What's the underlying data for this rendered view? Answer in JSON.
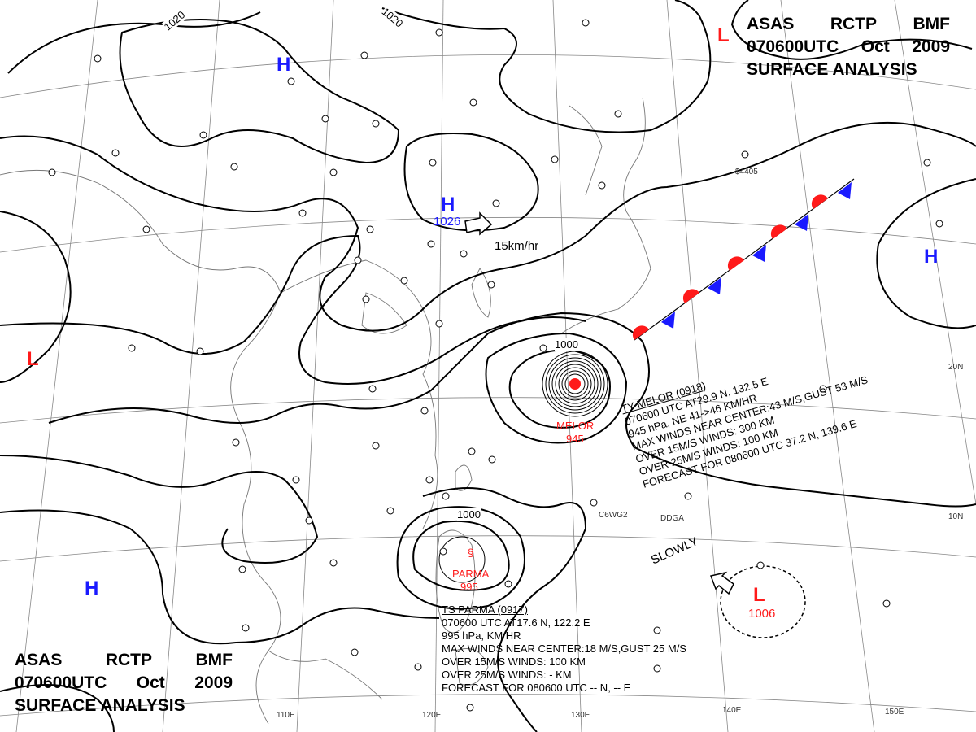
{
  "header": {
    "line1": [
      "ASAS",
      "RCTP",
      "BMF"
    ],
    "line2": [
      "070600UTC",
      "Oct",
      "2009"
    ],
    "line3": "SURFACE ANALYSIS"
  },
  "pressure_centers": [
    {
      "type": "H",
      "value": ""
    },
    {
      "type": "H",
      "value": "1026"
    },
    {
      "type": "H",
      "value": ""
    },
    {
      "type": "H",
      "value": ""
    },
    {
      "type": "L",
      "value": ""
    },
    {
      "type": "L",
      "value": ""
    },
    {
      "type": "L",
      "value": "1006"
    }
  ],
  "isobar_labels": [
    "1020",
    "1020",
    "1000",
    "1000"
  ],
  "motion": {
    "speed": "15km/hr",
    "slow": "SLOWLY"
  },
  "typhoons": [
    {
      "name": "MELOR",
      "pressure": "945"
    },
    {
      "name": "PARMA",
      "pressure": "995"
    }
  ],
  "melor_info": [
    "TY  MELOR  (0918)",
    "070600 UTC  AT29.9 N, 132.5 E",
    "945 hPa, NE  41->46 KM/HR",
    "MAX WINDS NEAR CENTER:43 M/S,GUST 53 M/S",
    "OVER 15M/S WINDS: 300 KM",
    "OVER 25M/S WINDS: 100 KM",
    "FORECAST FOR 080600 UTC 37.2 N, 139.6 E"
  ],
  "parma_info": [
    "TS  PARMA  (0917)",
    "070600 UTC  AT17.6 N, 122.2 E",
    "995 hPa,     KM/HR",
    "MAX WINDS NEAR CENTER:18 M/S,GUST 25 M/S",
    "OVER 15M/S WINDS: 100 KM",
    "OVER 25M/S WINDS: - KM",
    "FORECAST FOR 080600 UTC -- N, -- E"
  ],
  "grid_labels": {
    "longitudes": [
      "110E",
      "120E",
      "130E",
      "140E",
      "150E"
    ],
    "latitudes": [
      "20N",
      "10N"
    ]
  },
  "station_labels": [
    "C6WG2",
    "DDGA",
    "$4405"
  ],
  "colors": {
    "high": "#1a1aff",
    "low": "#ff1a1a",
    "warm_front": "#ff1a1a",
    "cold_front": "#1a1aff"
  }
}
